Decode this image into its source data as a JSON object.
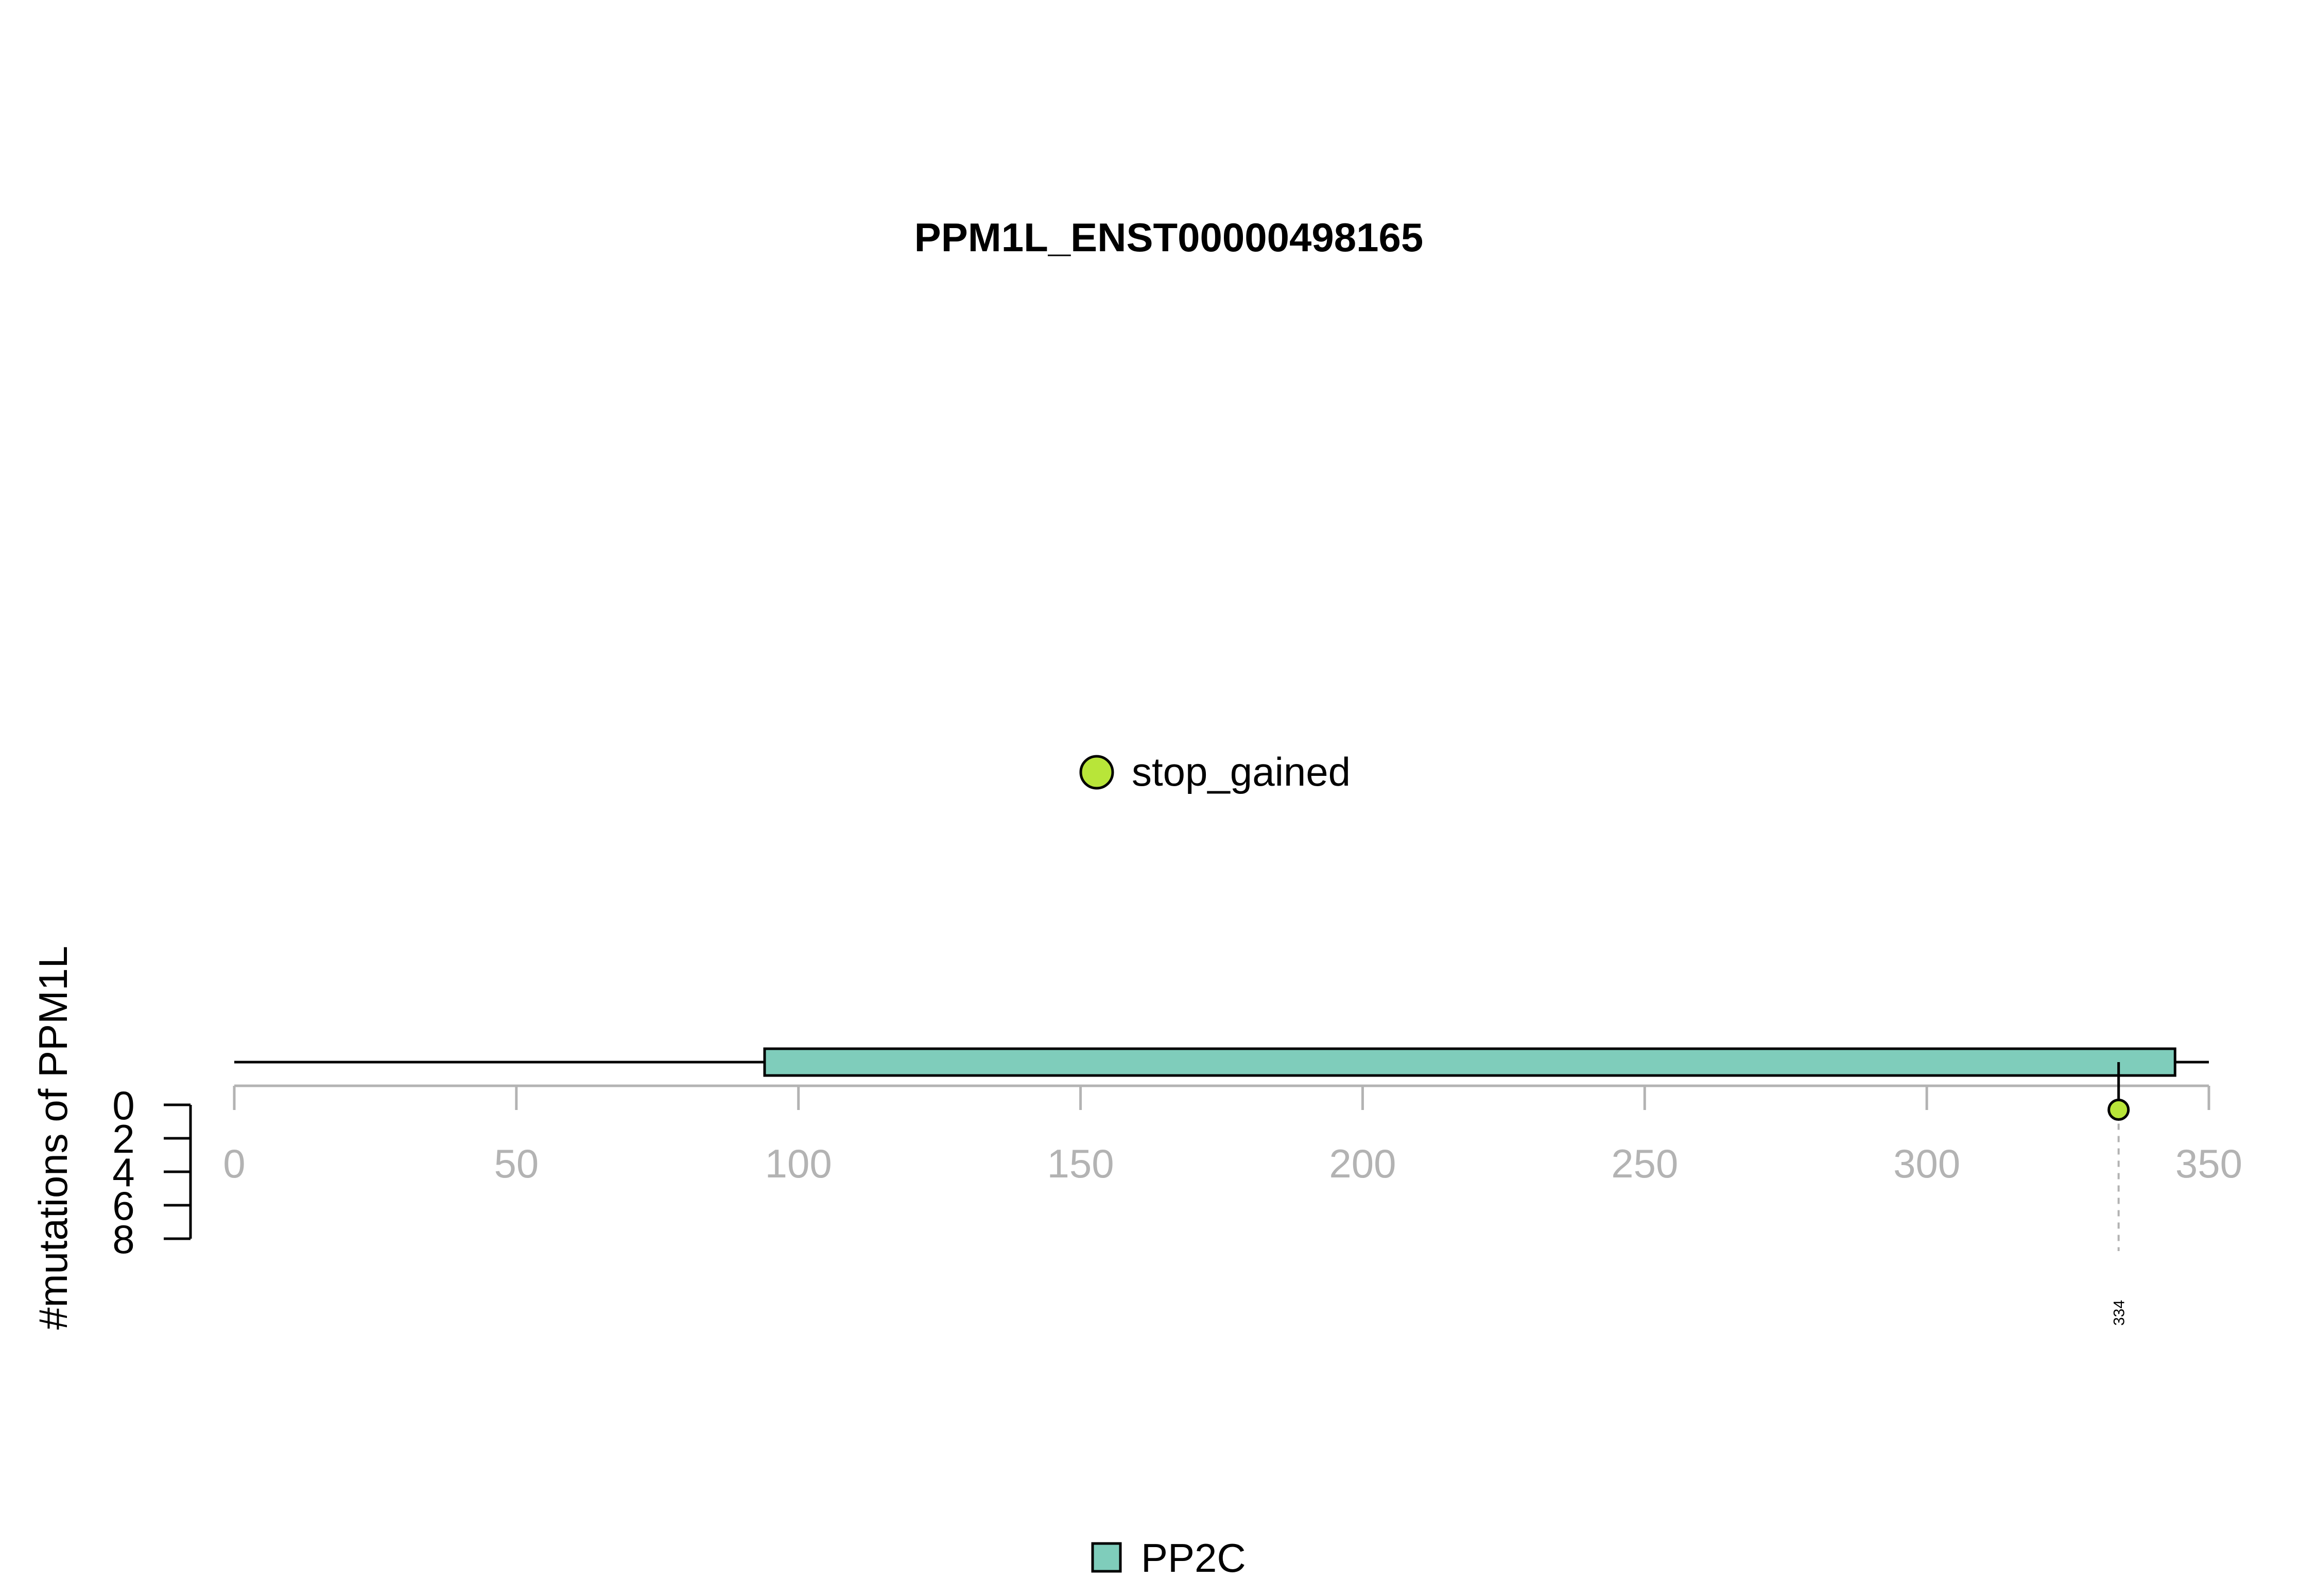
{
  "chart_data": {
    "type": "lollipop",
    "title": "PPM1L_ENST00000498165",
    "ylabel": "#mutations of PPM1L",
    "x_range": [
      0,
      350
    ],
    "x_ticks": [
      0,
      50,
      100,
      150,
      200,
      250,
      300,
      350
    ],
    "y_range": [
      0,
      8
    ],
    "y_ticks": [
      0,
      2,
      4,
      6,
      8
    ],
    "protein_length": 350,
    "domains": [
      {
        "name": "PP2C",
        "start": 94,
        "end": 344,
        "color": "#7fcdbb"
      }
    ],
    "mutations": [
      {
        "position": 334,
        "count": 1,
        "label": "334",
        "type": "stop_gained",
        "color": "#b8e539"
      }
    ],
    "mutation_legend": [
      {
        "label": "stop_gained",
        "color": "#b8e539"
      }
    ],
    "domain_legend": [
      {
        "label": "PP2C",
        "color": "#7fcdbb"
      }
    ]
  }
}
